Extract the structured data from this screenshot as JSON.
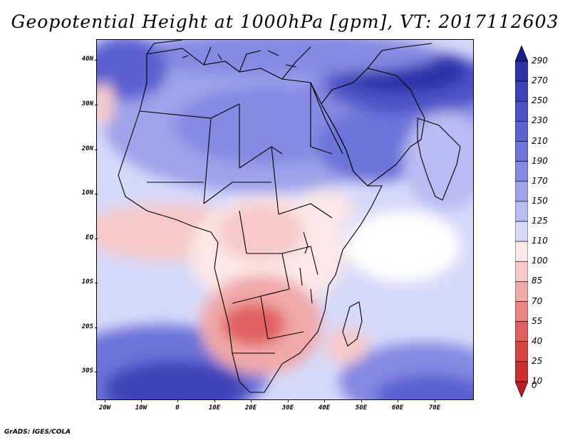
{
  "title": "Geopotential Height at 1000hPa [gpm], VT: 2017112603",
  "credit": "GrADS: IGES/COLA",
  "map": {
    "region": "Africa and surrounding oceans",
    "lon_range": [
      -22,
      80
    ],
    "lat_range": [
      -37,
      45
    ],
    "lat_labels": [
      "40N",
      "30N",
      "20N",
      "10N",
      "EQ",
      "10S",
      "20S",
      "30S"
    ],
    "lon_labels": [
      "20W",
      "10W",
      "0",
      "10E",
      "20E",
      "30E",
      "40E",
      "50E",
      "60E",
      "70E"
    ],
    "background_field_color": "#d7d9f9"
  },
  "colorbar": {
    "labels": [
      "290",
      "270",
      "250",
      "230",
      "210",
      "190",
      "170",
      "150",
      "125",
      "110",
      "100",
      "85",
      "70",
      "55",
      "40",
      "25",
      "10",
      "0"
    ],
    "colors": [
      "#1a1d8f",
      "#2e32a8",
      "#3f43b8",
      "#4d52c6",
      "#5b61d1",
      "#6c73d9",
      "#8489e2",
      "#9ea3ea",
      "#b9bcf2",
      "#d7d9f9",
      "#fbe7e7",
      "#f7c9c9",
      "#f0a8a8",
      "#e98585",
      "#e06060",
      "#d84545",
      "#c73232",
      "#b52020"
    ]
  }
}
